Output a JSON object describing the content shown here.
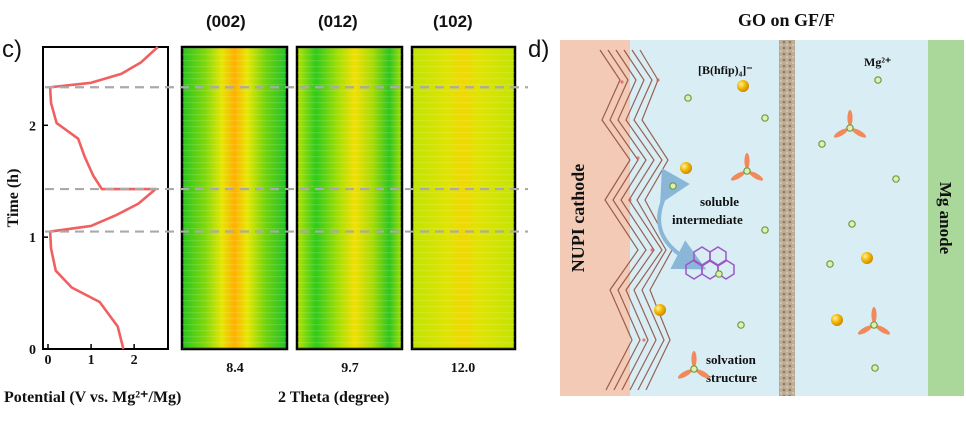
{
  "panel_c": {
    "label": "c)",
    "hkl_labels": [
      "(002)",
      "(012)",
      "(102)"
    ],
    "heatmap_centers": [
      "8.4",
      "9.7",
      "12.0"
    ],
    "xlabel_left": "Potential (V vs. Mg²⁺/Mg)",
    "xlabel_right": "2 Theta (degree)",
    "ylabel": "Time (h)"
  },
  "panel_d": {
    "label": "d)",
    "title": "GO on GF/F",
    "cathode_label": "NUPI cathode",
    "anode_label": "Mg anode",
    "anion_label": "[B(hfip)₄]⁻",
    "cation_label": "Mg²⁺",
    "intermediate_label_1": "soluble",
    "intermediate_label_2": "intermediate",
    "solvation_label_1": "solvation",
    "solvation_label_2": "structure"
  },
  "chart_data": {
    "type": "line",
    "xlabel": "Potential (V vs. Mg²⁺/Mg)",
    "ylabel": "Time (h)",
    "xlim": [
      0,
      2.6
    ],
    "ylim": [
      0,
      2.7
    ],
    "xticks": [
      "0",
      "1",
      "2"
    ],
    "yticks": [
      "0",
      "1",
      "2"
    ],
    "series": [
      {
        "points": [
          [
            1.75,
            0.0
          ],
          [
            1.62,
            0.2
          ],
          [
            1.2,
            0.42
          ],
          [
            0.55,
            0.55
          ],
          [
            0.18,
            0.7
          ],
          [
            0.07,
            0.9
          ],
          [
            0.05,
            1.05
          ],
          [
            1.0,
            1.1
          ],
          [
            1.6,
            1.2
          ],
          [
            2.1,
            1.3
          ],
          [
            2.5,
            1.43
          ],
          [
            1.25,
            1.43
          ],
          [
            1.05,
            1.55
          ],
          [
            0.85,
            1.72
          ],
          [
            0.7,
            1.88
          ],
          [
            0.2,
            2.02
          ],
          [
            0.07,
            2.2
          ],
          [
            0.05,
            2.34
          ],
          [
            1.0,
            2.38
          ],
          [
            1.7,
            2.46
          ],
          [
            2.15,
            2.56
          ],
          [
            2.55,
            2.7
          ]
        ]
      }
    ],
    "dashed_levels": [
      1.05,
      1.43,
      2.34
    ]
  },
  "colors": {
    "curve": "#f06060",
    "dash": "#aaaaaa",
    "cathode_bg": "#f2cab6",
    "electrolyte_bg": "#d8ecf3",
    "separator": "#b8a690",
    "anode_bg": "#a9d89a",
    "anion": "#f0b400",
    "cation_fill": "#d8ecb0",
    "solvation": "#f2895a",
    "arrow": "#8ab6d8",
    "molecule": "#9a58c6"
  }
}
